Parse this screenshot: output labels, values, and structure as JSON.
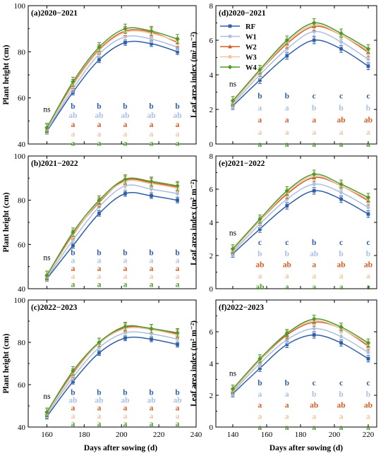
{
  "colors": {
    "RF": "#2f5fa8",
    "W1": "#a9c0e4",
    "W2": "#d35b24",
    "W3": "#f2c3a1",
    "W4": "#4c9a2a"
  },
  "legend": [
    "RF",
    "W1",
    "W2",
    "W3",
    "W4"
  ],
  "xlabel": "Days after sowing (d)",
  "ylabel_left": "Plant height (cm)",
  "ylabel_right": "Leaf area index (m² m⁻²)",
  "chart_data": [
    {
      "panel": "a",
      "type": "line",
      "title": "(a)2020−2021",
      "ylabel": "Plant height (cm)",
      "xlim": [
        150,
        240
      ],
      "ylim": [
        40,
        100
      ],
      "xticks": [],
      "yticks": [
        40,
        60,
        80,
        100
      ],
      "x": [
        160,
        174,
        188,
        202,
        216,
        230
      ],
      "series": [
        {
          "name": "RF",
          "values": [
            45.5,
            62.5,
            76.5,
            84.0,
            83.5,
            80.0
          ],
          "err": 1.2
        },
        {
          "name": "W1",
          "values": [
            46.0,
            64.0,
            79.0,
            86.5,
            85.5,
            82.0
          ],
          "err": 1.5
        },
        {
          "name": "W2",
          "values": [
            46.5,
            66.0,
            81.0,
            89.0,
            88.5,
            84.0
          ],
          "err": 2.0
        },
        {
          "name": "W3",
          "values": [
            46.5,
            65.5,
            80.5,
            88.5,
            88.0,
            84.5
          ],
          "err": 2.0
        },
        {
          "name": "W4",
          "values": [
            47.0,
            67.0,
            82.0,
            90.0,
            89.0,
            85.5
          ],
          "err": 2.0
        }
      ],
      "ns_label": "ns",
      "letters": [
        [
          "b",
          "b",
          "b",
          "b",
          "b"
        ],
        [
          "ab",
          "ab",
          "ab",
          "ab",
          "ab"
        ],
        [
          "a",
          "a",
          "a",
          "a",
          "a"
        ],
        [
          "a",
          "a",
          "a",
          "a",
          "a"
        ],
        [
          "a",
          "a",
          "a",
          "a",
          "a"
        ]
      ]
    },
    {
      "panel": "b",
      "type": "line",
      "title": "(b)2021−2022",
      "ylabel": "Plant height (cm)",
      "xlim": [
        150,
        240
      ],
      "ylim": [
        40,
        100
      ],
      "xticks": [],
      "yticks": [
        40,
        60,
        80,
        100
      ],
      "x": [
        160,
        174,
        188,
        202,
        216,
        230
      ],
      "series": [
        {
          "name": "RF",
          "values": [
            44.5,
            59.5,
            74.0,
            83.0,
            82.0,
            80.0
          ],
          "err": 1.2
        },
        {
          "name": "W1",
          "values": [
            45.0,
            62.0,
            77.0,
            86.5,
            85.0,
            83.0
          ],
          "err": 1.5
        },
        {
          "name": "W2",
          "values": [
            45.5,
            64.5,
            79.0,
            89.0,
            88.0,
            86.0
          ],
          "err": 2.0
        },
        {
          "name": "W3",
          "values": [
            45.5,
            64.0,
            79.5,
            88.5,
            87.5,
            85.5
          ],
          "err": 2.0
        },
        {
          "name": "W4",
          "values": [
            46.0,
            65.5,
            80.0,
            89.5,
            88.5,
            86.5
          ],
          "err": 2.0
        }
      ],
      "ns_label": "ns",
      "letters": [
        [
          "b",
          "b",
          "b",
          "b",
          "b"
        ],
        [
          "a",
          "a",
          "a",
          "a",
          "a"
        ],
        [
          "a",
          "a",
          "a",
          "a",
          "a"
        ],
        [
          "a",
          "a",
          "a",
          "a",
          "a"
        ],
        [
          "a",
          "a",
          "a",
          "a",
          "a"
        ]
      ]
    },
    {
      "panel": "c",
      "type": "line",
      "title": "(c)2022−2023",
      "ylabel": "Plant height (cm)",
      "xlim": [
        150,
        240
      ],
      "ylim": [
        40,
        100
      ],
      "xticks": [
        160,
        180,
        200,
        220,
        240
      ],
      "yticks": [
        40,
        60,
        80,
        100
      ],
      "x": [
        160,
        174,
        188,
        202,
        216,
        230
      ],
      "series": [
        {
          "name": "RF",
          "values": [
            45.0,
            61.5,
            75.0,
            82.0,
            81.5,
            79.0
          ],
          "err": 1.2
        },
        {
          "name": "W1",
          "values": [
            46.0,
            63.5,
            77.5,
            84.5,
            84.0,
            81.5
          ],
          "err": 1.5
        },
        {
          "name": "W2",
          "values": [
            46.5,
            65.5,
            79.5,
            87.0,
            86.5,
            84.0
          ],
          "err": 2.0
        },
        {
          "name": "W3",
          "values": [
            46.5,
            65.0,
            79.5,
            86.5,
            86.0,
            83.5
          ],
          "err": 2.0
        },
        {
          "name": "W4",
          "values": [
            47.0,
            66.5,
            80.0,
            87.5,
            86.5,
            84.5
          ],
          "err": 2.0
        }
      ],
      "ns_label": "ns",
      "letters": [
        [
          "b",
          "b",
          "b",
          "b",
          "b"
        ],
        [
          "ab",
          "ab",
          "ab",
          "ab",
          "ab"
        ],
        [
          "a",
          "a",
          "a",
          "a",
          "a"
        ],
        [
          "a",
          "a",
          "a",
          "a",
          "a"
        ],
        [
          "a",
          "a",
          "a",
          "a",
          "a"
        ]
      ]
    },
    {
      "panel": "d",
      "type": "line",
      "title": "(d)2020−2021",
      "ylabel": "Leaf area index (m² m⁻²)",
      "xlim": [
        130,
        225
      ],
      "ylim": [
        0,
        8
      ],
      "xticks": [],
      "yticks": [
        0,
        2,
        4,
        6,
        8
      ],
      "x": [
        140,
        156,
        172,
        188,
        204,
        220
      ],
      "legend_position": "top-left",
      "series": [
        {
          "name": "RF",
          "values": [
            2.2,
            3.7,
            5.1,
            6.0,
            5.5,
            4.5
          ],
          "err": 0.2
        },
        {
          "name": "W1",
          "values": [
            2.3,
            4.0,
            5.5,
            6.5,
            5.9,
            4.9
          ],
          "err": 0.25
        },
        {
          "name": "W2",
          "values": [
            2.4,
            4.2,
            5.8,
            6.8,
            6.3,
            5.3
          ],
          "err": 0.25
        },
        {
          "name": "W3",
          "values": [
            2.4,
            4.2,
            5.9,
            6.9,
            6.3,
            5.4
          ],
          "err": 0.25
        },
        {
          "name": "W4",
          "values": [
            2.5,
            4.3,
            6.0,
            7.0,
            6.4,
            5.5
          ],
          "err": 0.25
        }
      ],
      "ns_label": "ns",
      "letters": [
        [
          "b",
          "b",
          "c",
          "c",
          "c"
        ],
        [
          "a",
          "a",
          "b",
          "b",
          "b"
        ],
        [
          "a",
          "a",
          "a",
          "ab",
          "ab"
        ],
        [
          "a",
          "a",
          "a",
          "a",
          "a"
        ],
        [
          "a",
          "a",
          "a",
          "a",
          "a"
        ]
      ]
    },
    {
      "panel": "e",
      "type": "line",
      "title": "(e)2021−2022",
      "ylabel": "Leaf area index (m² m⁻²)",
      "xlim": [
        130,
        225
      ],
      "ylim": [
        0,
        8
      ],
      "xticks": [],
      "yticks": [
        0,
        2,
        4,
        6,
        8
      ],
      "x": [
        140,
        156,
        172,
        188,
        204,
        220
      ],
      "series": [
        {
          "name": "RF",
          "values": [
            2.1,
            3.6,
            5.0,
            5.9,
            5.4,
            4.5
          ],
          "err": 0.2
        },
        {
          "name": "W1",
          "values": [
            2.2,
            3.9,
            5.4,
            6.3,
            5.8,
            4.9
          ],
          "err": 0.25
        },
        {
          "name": "W2",
          "values": [
            2.3,
            4.1,
            5.7,
            6.7,
            6.2,
            5.3
          ],
          "err": 0.25
        },
        {
          "name": "W3",
          "values": [
            2.3,
            4.1,
            5.8,
            6.8,
            6.2,
            5.4
          ],
          "err": 0.25
        },
        {
          "name": "W4",
          "values": [
            2.4,
            4.2,
            5.9,
            6.9,
            6.3,
            5.5
          ],
          "err": 0.25
        }
      ],
      "ns_label": "ns",
      "letters": [
        [
          "c",
          "c",
          "b",
          "c",
          "c"
        ],
        [
          "b",
          "b",
          "ab",
          "b",
          "b"
        ],
        [
          "ab",
          "ab",
          "a",
          "ab",
          "ab"
        ],
        [
          "a",
          "a",
          "a",
          "a",
          "a"
        ],
        [
          "ab",
          "a",
          "a",
          "a",
          "a"
        ]
      ]
    },
    {
      "panel": "f",
      "type": "line",
      "title": "(f)2022−2023",
      "ylabel": "Leaf area index (m² m⁻²)",
      "xlim": [
        130,
        225
      ],
      "ylim": [
        0,
        8
      ],
      "xticks": [
        140,
        160,
        180,
        200,
        220
      ],
      "yticks": [
        0,
        2,
        4,
        6
      ],
      "x": [
        140,
        156,
        172,
        188,
        204,
        220
      ],
      "series": [
        {
          "name": "RF",
          "values": [
            2.1,
            3.7,
            5.2,
            5.8,
            5.3,
            4.3
          ],
          "err": 0.2
        },
        {
          "name": "W1",
          "values": [
            2.2,
            4.0,
            5.5,
            6.2,
            5.7,
            4.7
          ],
          "err": 0.25
        },
        {
          "name": "W2",
          "values": [
            2.3,
            4.2,
            5.8,
            6.6,
            6.2,
            5.1
          ],
          "err": 0.25
        },
        {
          "name": "W3",
          "values": [
            2.3,
            4.2,
            5.9,
            6.7,
            6.2,
            5.2
          ],
          "err": 0.25
        },
        {
          "name": "W4",
          "values": [
            2.4,
            4.3,
            5.9,
            6.8,
            6.3,
            5.3
          ],
          "err": 0.25
        }
      ],
      "ns_label": "ns",
      "letters": [
        [
          "b",
          "b",
          "c",
          "c",
          "c"
        ],
        [
          "a",
          "a",
          "b",
          "b",
          "b"
        ],
        [
          "a",
          "a",
          "ab",
          "ab",
          "ab"
        ],
        [
          "a",
          "a",
          "a",
          "a",
          "a"
        ],
        [
          "a",
          "a",
          "a",
          "a",
          "a"
        ]
      ]
    }
  ]
}
